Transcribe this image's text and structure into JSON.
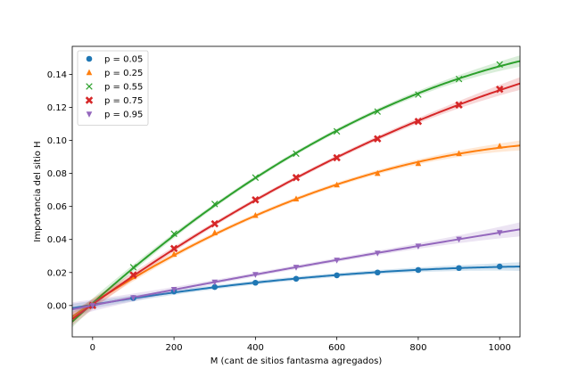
{
  "chart_data": {
    "type": "scatter",
    "title": "",
    "xlabel": "M (cant de sitios fantasma agregados)",
    "ylabel": "Importancia del sitio H",
    "xlim": [
      -50,
      1050
    ],
    "ylim": [
      -0.019,
      0.157
    ],
    "xticks": [
      0,
      200,
      400,
      600,
      800,
      1000
    ],
    "yticks": [
      0.0,
      0.02,
      0.04,
      0.06,
      0.08,
      0.1,
      0.12,
      0.14
    ],
    "ytick_labels": [
      "0.00",
      "0.02",
      "0.04",
      "0.06",
      "0.08",
      "0.10",
      "0.12",
      "0.14"
    ],
    "grid": false,
    "legend_position": "top-left",
    "x": [
      0,
      100,
      200,
      300,
      400,
      500,
      600,
      700,
      800,
      900,
      1000
    ],
    "series": [
      {
        "name": "p = 0.05",
        "color": "#1f77b4",
        "marker": "circle",
        "values": [
          0.0,
          0.0045,
          0.0085,
          0.0112,
          0.0138,
          0.0162,
          0.0183,
          0.02,
          0.0215,
          0.0227,
          0.0236
        ]
      },
      {
        "name": "p = 0.25",
        "color": "#ff7f0e",
        "marker": "triangle-up",
        "values": [
          0.0,
          0.0175,
          0.031,
          0.044,
          0.0545,
          0.0645,
          0.073,
          0.08,
          0.086,
          0.092,
          0.0965
        ]
      },
      {
        "name": "p = 0.55",
        "color": "#2ca02c",
        "marker": "x",
        "values": [
          0.0,
          0.0232,
          0.0435,
          0.0615,
          0.0775,
          0.092,
          0.1055,
          0.1175,
          0.1278,
          0.1372,
          0.146
        ]
      },
      {
        "name": "p = 0.75",
        "color": "#d62728",
        "marker": "x-bold",
        "values": [
          0.0,
          0.0185,
          0.0345,
          0.0495,
          0.064,
          0.0775,
          0.0895,
          0.101,
          0.1115,
          0.1215,
          0.131
        ]
      },
      {
        "name": "p = 0.95",
        "color": "#9467bd",
        "marker": "triangle-down",
        "values": [
          0.0,
          0.0048,
          0.0098,
          0.0142,
          0.0188,
          0.0232,
          0.0275,
          0.0318,
          0.036,
          0.0402,
          0.0442
        ]
      }
    ]
  }
}
